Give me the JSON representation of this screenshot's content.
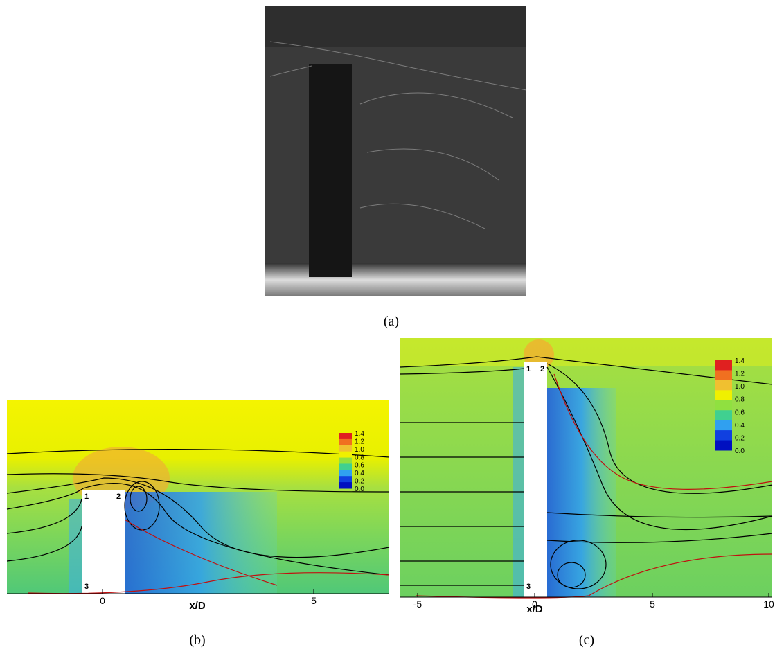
{
  "panels": [
    {
      "caption": "(a)"
    },
    {
      "caption": "(b)",
      "x_label": "x/D",
      "x_ticks": [
        "0",
        "5"
      ],
      "colorbar_labels": [
        "1.4",
        "1.2",
        "1.0",
        "0.8",
        "0.6",
        "0.4",
        "0.2",
        "0.0"
      ],
      "point_labels": [
        "1",
        "2",
        "3"
      ]
    },
    {
      "caption": "(c)",
      "x_label": "x/D",
      "x_ticks": [
        "-5",
        "0",
        "5",
        "10"
      ],
      "colorbar_labels": [
        "1.4",
        "1.2",
        "1.0",
        "0.8",
        "0.6",
        "0.4",
        "0.2",
        "0.0"
      ],
      "point_labels": [
        "1",
        "2",
        "3"
      ]
    }
  ]
}
